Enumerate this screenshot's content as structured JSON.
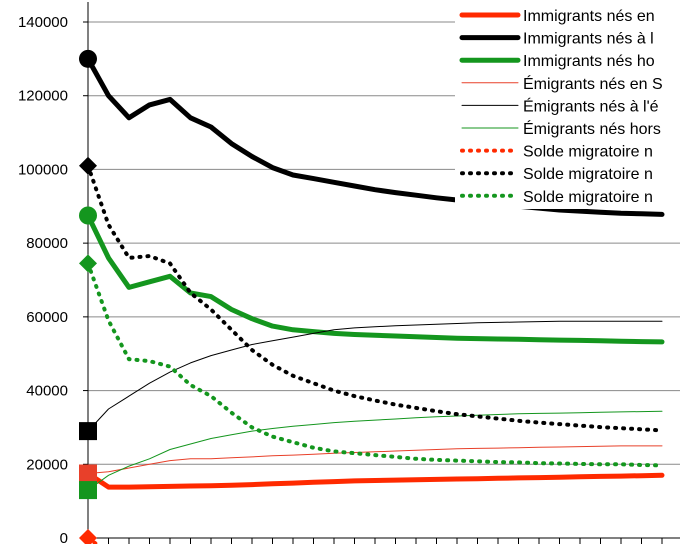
{
  "chart_data": {
    "type": "line",
    "title": "",
    "xlabel": "",
    "ylabel": "",
    "ylim": [
      0,
      140000
    ],
    "y_ticks": [
      0,
      20000,
      40000,
      60000,
      80000,
      100000,
      120000,
      140000
    ],
    "y_tick_labels": [
      "0",
      "20000",
      "40000",
      "60000",
      "80000",
      "100000",
      "120000",
      "140000"
    ],
    "x_count": 29,
    "grid": "horizontal",
    "legend_position": "top-right",
    "series": [
      {
        "name": "Immigrants nés en",
        "color": "#ff2a00",
        "width": 5,
        "dash": "",
        "marker": "square",
        "values": [
          17500,
          13800,
          13800,
          13900,
          14000,
          14100,
          14200,
          14300,
          14500,
          14700,
          14900,
          15100,
          15300,
          15500,
          15600,
          15700,
          15800,
          15900,
          16000,
          16100,
          16200,
          16300,
          16400,
          16500,
          16600,
          16700,
          16800,
          16900,
          17000
        ]
      },
      {
        "name": "Immigrants nés à l",
        "color": "#000000",
        "width": 5,
        "dash": "",
        "marker": "circle",
        "values": [
          130000,
          120000,
          114000,
          117500,
          119000,
          114000,
          111500,
          107000,
          103500,
          100500,
          98500,
          97500,
          96500,
          95500,
          94500,
          93700,
          93000,
          92300,
          91700,
          91000,
          90500,
          90000,
          89500,
          89000,
          88700,
          88400,
          88100,
          88000,
          87800
        ]
      },
      {
        "name": "Immigrants nés ho",
        "color": "#14961e",
        "width": 5,
        "dash": "",
        "marker": "circle",
        "values": [
          87500,
          76000,
          68000,
          69500,
          71000,
          66500,
          65500,
          62000,
          59500,
          57500,
          56500,
          56000,
          55500,
          55200,
          55000,
          54800,
          54600,
          54400,
          54200,
          54100,
          54000,
          53900,
          53800,
          53700,
          53600,
          53500,
          53400,
          53300,
          53200
        ]
      },
      {
        "name": "Émigrants nés en S",
        "color": "#e8402a",
        "width": 1,
        "dash": "",
        "marker": "square",
        "values": [
          17500,
          18000,
          19000,
          20000,
          21000,
          21500,
          21500,
          21800,
          22000,
          22300,
          22500,
          22700,
          23000,
          23200,
          23400,
          23600,
          23800,
          24000,
          24200,
          24300,
          24400,
          24500,
          24600,
          24700,
          24800,
          24900,
          25000,
          25000,
          25000
        ]
      },
      {
        "name": "Émigrants nés à l'é",
        "color": "#000000",
        "width": 1,
        "dash": "",
        "marker": "square",
        "values": [
          29000,
          35000,
          38500,
          42000,
          45000,
          47500,
          49500,
          51000,
          52500,
          53500,
          54500,
          55500,
          56500,
          57000,
          57300,
          57600,
          57800,
          58000,
          58200,
          58400,
          58500,
          58600,
          58700,
          58800,
          58800,
          58800,
          58800,
          58800,
          58800
        ]
      },
      {
        "name": "Émigrants nés hors",
        "color": "#14961e",
        "width": 1,
        "dash": "",
        "marker": "square",
        "values": [
          13000,
          17000,
          19500,
          21500,
          24000,
          25500,
          27000,
          28000,
          29000,
          29700,
          30300,
          30800,
          31300,
          31700,
          32000,
          32300,
          32600,
          32900,
          33100,
          33300,
          33500,
          33700,
          33800,
          33900,
          34000,
          34100,
          34200,
          34300,
          34400
        ]
      },
      {
        "name": "Solde migratoire n",
        "color": "#ff2a00",
        "width": 4,
        "dash": "1,7",
        "marker": "diamond",
        "values": [
          0,
          -4000,
          -5500,
          -6500,
          -7000,
          -7200,
          -7200,
          -7300,
          -7400,
          -7500,
          -7600,
          -7700,
          -7700,
          -7800,
          -7800,
          -7900,
          -7900,
          -8000,
          -8000,
          -8000,
          -8100,
          -8100,
          -8100,
          -8100,
          -8100,
          -8100,
          -8100,
          -8000,
          -8000
        ]
      },
      {
        "name": "Solde migratoire n",
        "color": "#000000",
        "width": 4,
        "dash": "1,7",
        "marker": "diamond",
        "values": [
          101000,
          85000,
          76000,
          76500,
          74500,
          66500,
          62000,
          56500,
          51000,
          47000,
          44000,
          42000,
          40000,
          38500,
          37300,
          36200,
          35300,
          34400,
          33600,
          33000,
          32400,
          31800,
          31300,
          30900,
          30500,
          30100,
          29800,
          29500,
          29200
        ]
      },
      {
        "name": "Solde migratoire n",
        "color": "#14961e",
        "width": 4,
        "dash": "1,7",
        "marker": "diamond",
        "values": [
          74500,
          59000,
          48500,
          48000,
          46500,
          41500,
          38500,
          34000,
          30000,
          27500,
          26000,
          24500,
          23500,
          23000,
          22500,
          22000,
          21500,
          21200,
          21000,
          20800,
          20600,
          20500,
          20300,
          20200,
          20100,
          20000,
          20000,
          19800,
          19700
        ]
      }
    ]
  }
}
